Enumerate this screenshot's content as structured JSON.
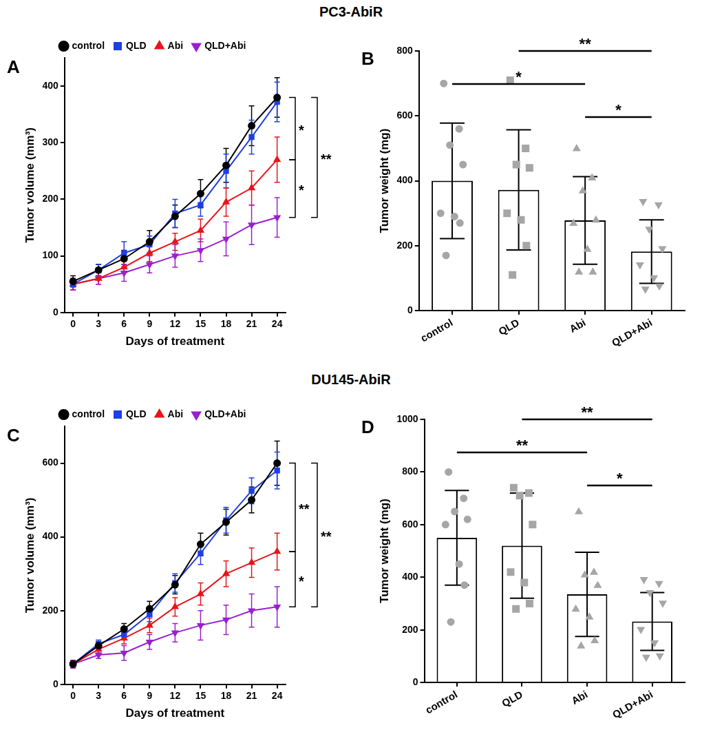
{
  "section_titles": [
    "PC3-AbiR",
    "DU145-AbiR"
  ],
  "chart_data": [
    {
      "panel_label": "A",
      "type": "line",
      "x": [
        0,
        3,
        6,
        9,
        12,
        15,
        18,
        21,
        24
      ],
      "x_label": "Days of treatment",
      "y_label": "Tumor volume (mm³)",
      "xlim": [
        -1,
        25
      ],
      "xticks": [
        0,
        3,
        6,
        9,
        12,
        15,
        18,
        21,
        24
      ],
      "ylim": [
        0,
        450
      ],
      "yticks": [
        0,
        100,
        200,
        300,
        400
      ],
      "grid": false,
      "legend": "top",
      "series": [
        {
          "name": "control",
          "color": "#000000",
          "marker": "circle",
          "values": [
            55,
            75,
            95,
            125,
            170,
            210,
            260,
            330,
            380
          ],
          "errors": [
            10,
            10,
            15,
            20,
            20,
            25,
            30,
            35,
            35
          ]
        },
        {
          "name": "QLD",
          "color": "#1f3fe0",
          "marker": "square",
          "values": [
            50,
            75,
            105,
            120,
            175,
            190,
            250,
            310,
            372
          ],
          "errors": [
            10,
            10,
            20,
            15,
            25,
            20,
            30,
            30,
            35
          ]
        },
        {
          "name": "Abi",
          "color": "#e8141a",
          "marker": "triangle",
          "values": [
            50,
            60,
            80,
            105,
            125,
            145,
            195,
            220,
            270
          ],
          "errors": [
            10,
            10,
            10,
            15,
            15,
            20,
            25,
            30,
            40
          ]
        },
        {
          "name": "QLD+Abi",
          "color": "#9a1fd0",
          "marker": "triangle-down",
          "values": [
            50,
            60,
            70,
            85,
            100,
            110,
            130,
            155,
            168
          ],
          "errors": [
            10,
            10,
            15,
            15,
            20,
            20,
            30,
            35,
            35
          ]
        }
      ],
      "annotations": [
        {
          "from": "control",
          "to": "Abi",
          "label": "*"
        },
        {
          "from": "Abi",
          "to": "QLD+Abi",
          "label": "*"
        },
        {
          "from": "control",
          "to": "QLD+Abi",
          "label": "**"
        }
      ]
    },
    {
      "panel_label": "B",
      "type": "bar",
      "categories": [
        "control",
        "QLD",
        "Abi",
        "QLD+Abi"
      ],
      "values": [
        400,
        372,
        278,
        182
      ],
      "errors": [
        178,
        185,
        135,
        98
      ],
      "color": "#ffffff",
      "y_label": "Tumor weight (mg)",
      "ylim": [
        0,
        800
      ],
      "yticks": [
        0,
        200,
        400,
        600,
        800
      ],
      "grid": false,
      "dots": [
        {
          "category": "control",
          "marker": "circle",
          "color": "#a6a6a6",
          "values": [
            700,
            560,
            510,
            450,
            300,
            290,
            270,
            170
          ]
        },
        {
          "category": "QLD",
          "marker": "square",
          "color": "#a6a6a6",
          "values": [
            710,
            500,
            450,
            440,
            300,
            280,
            200,
            110
          ]
        },
        {
          "category": "Abi",
          "marker": "triangle",
          "color": "#a6a6a6",
          "values": [
            500,
            410,
            370,
            280,
            270,
            190,
            120,
            120
          ]
        },
        {
          "category": "QLD+Abi",
          "marker": "triangle-down",
          "color": "#a6a6a6",
          "values": [
            335,
            325,
            250,
            190,
            140,
            100,
            75,
            65
          ]
        }
      ],
      "annotations": [
        {
          "from": "Abi",
          "to": "QLD+Abi",
          "label": "*"
        },
        {
          "from": "control",
          "to": "Abi",
          "label": "*"
        },
        {
          "from": "QLD",
          "to": "QLD+Abi",
          "label": "**"
        }
      ]
    },
    {
      "panel_label": "C",
      "type": "line",
      "x": [
        0,
        3,
        6,
        9,
        12,
        15,
        18,
        21,
        24
      ],
      "x_label": "Days of treatment",
      "y_label": "Tumor volume (mm³)",
      "xlim": [
        -1,
        25
      ],
      "xticks": [
        0,
        3,
        6,
        9,
        12,
        15,
        18,
        21,
        24
      ],
      "ylim": [
        0,
        700
      ],
      "yticks": [
        0,
        200,
        400,
        600
      ],
      "grid": false,
      "legend": "top",
      "series": [
        {
          "name": "control",
          "color": "#000000",
          "marker": "circle",
          "values": [
            55,
            105,
            150,
            205,
            270,
            380,
            440,
            500,
            600
          ],
          "errors": [
            10,
            10,
            15,
            20,
            25,
            30,
            35,
            35,
            60
          ]
        },
        {
          "name": "QLD",
          "color": "#1f3fe0",
          "marker": "square",
          "values": [
            55,
            110,
            135,
            190,
            275,
            355,
            445,
            525,
            580
          ],
          "errors": [
            10,
            10,
            15,
            20,
            25,
            30,
            35,
            35,
            50
          ]
        },
        {
          "name": "Abi",
          "color": "#e8141a",
          "marker": "triangle",
          "values": [
            55,
            95,
            125,
            160,
            210,
            245,
            300,
            330,
            360
          ],
          "errors": [
            10,
            10,
            15,
            20,
            25,
            30,
            35,
            40,
            50
          ]
        },
        {
          "name": "QLD+Abi",
          "color": "#9a1fd0",
          "marker": "triangle-down",
          "values": [
            55,
            80,
            85,
            115,
            140,
            160,
            175,
            200,
            210
          ],
          "errors": [
            10,
            10,
            20,
            20,
            25,
            40,
            40,
            45,
            55
          ]
        }
      ],
      "annotations": [
        {
          "from": "control",
          "to": "Abi",
          "label": "**"
        },
        {
          "from": "Abi",
          "to": "QLD+Abi",
          "label": "*"
        },
        {
          "from": "control",
          "to": "QLD+Abi",
          "label": "**"
        }
      ]
    },
    {
      "panel_label": "D",
      "type": "bar",
      "categories": [
        "control",
        "QLD",
        "Abi",
        "QLD+Abi"
      ],
      "values": [
        550,
        520,
        335,
        232
      ],
      "errors": [
        180,
        200,
        160,
        110
      ],
      "color": "#ffffff",
      "y_label": "Tumor weight (mg)",
      "ylim": [
        0,
        1000
      ],
      "yticks": [
        0,
        200,
        400,
        600,
        800,
        1000
      ],
      "grid": false,
      "dots": [
        {
          "category": "control",
          "marker": "circle",
          "color": "#a6a6a6",
          "values": [
            800,
            700,
            650,
            620,
            600,
            450,
            370,
            230
          ]
        },
        {
          "category": "QLD",
          "marker": "square",
          "color": "#a6a6a6",
          "values": [
            740,
            720,
            710,
            600,
            420,
            380,
            300,
            280
          ]
        },
        {
          "category": "Abi",
          "marker": "triangle",
          "color": "#a6a6a6",
          "values": [
            650,
            420,
            410,
            370,
            280,
            250,
            160,
            140
          ]
        },
        {
          "category": "QLD+Abi",
          "marker": "triangle-down",
          "color": "#a6a6a6",
          "values": [
            390,
            375,
            340,
            300,
            200,
            150,
            100,
            95
          ]
        }
      ],
      "annotations": [
        {
          "from": "Abi",
          "to": "QLD+Abi",
          "label": "*"
        },
        {
          "from": "control",
          "to": "Abi",
          "label": "**"
        },
        {
          "from": "QLD",
          "to": "QLD+Abi",
          "label": "**"
        }
      ]
    }
  ]
}
